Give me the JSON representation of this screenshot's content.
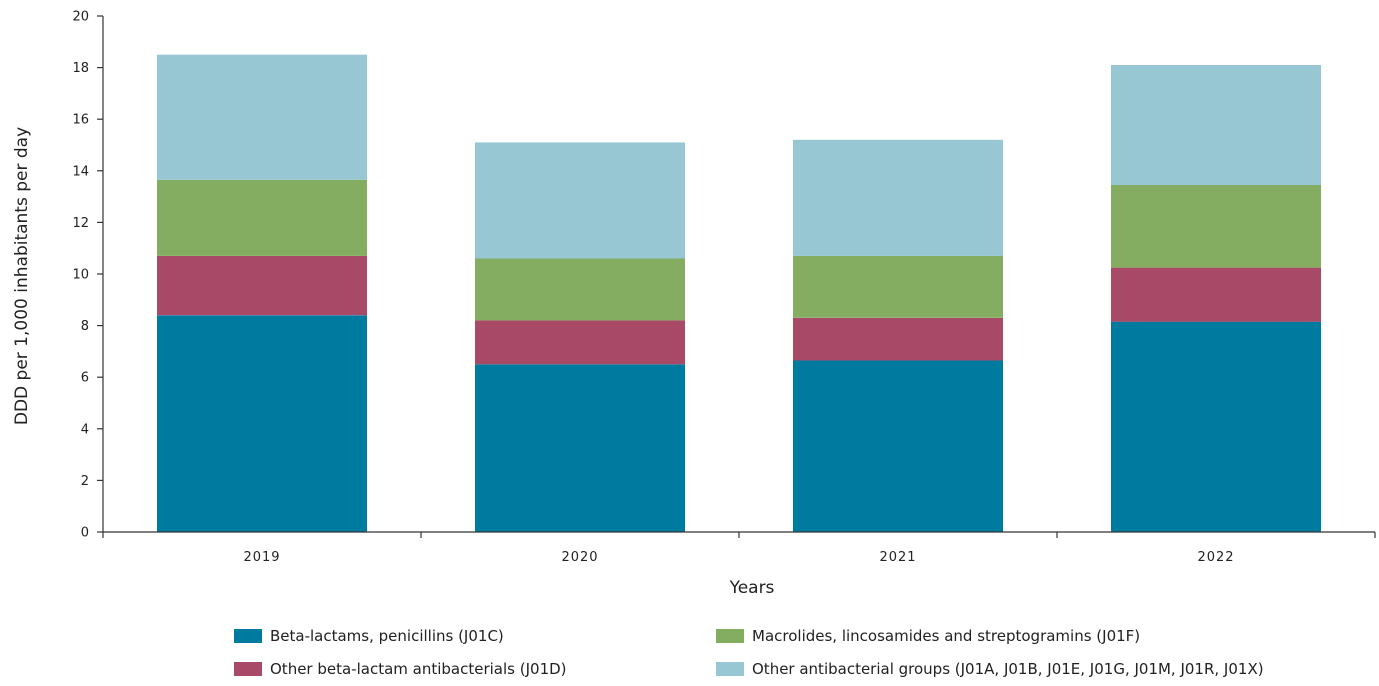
{
  "chart_data": {
    "type": "bar",
    "stacked": true,
    "title": "",
    "xlabel": "Years",
    "ylabel": "DDD per 1,000 inhabitants per day",
    "ylim": [
      0,
      20
    ],
    "yticks": [
      0,
      2,
      4,
      6,
      8,
      10,
      12,
      14,
      16,
      18,
      20
    ],
    "grid": false,
    "legend_position": "bottom",
    "categories": [
      "2019",
      "2020",
      "2021",
      "2022"
    ],
    "series": [
      {
        "name": "Beta-lactams, penicillins (J01C)",
        "color": "#007ba0",
        "values": [
          8.4,
          6.5,
          6.65,
          8.15
        ]
      },
      {
        "name": "Other beta-lactam antibacterials (J01D)",
        "color": "#a84a67",
        "values": [
          2.3,
          1.7,
          1.65,
          2.1
        ]
      },
      {
        "name": "Macrolides, lincosamides and streptogramins (J01F)",
        "color": "#85ad62",
        "values": [
          2.95,
          2.4,
          2.4,
          3.2
        ]
      },
      {
        "name": "Other antibacterial groups (J01A, J01B, J01E, J01G, J01M, J01R, J01X)",
        "color": "#97c7d2",
        "values": [
          4.85,
          4.5,
          4.5,
          4.65
        ]
      }
    ]
  }
}
